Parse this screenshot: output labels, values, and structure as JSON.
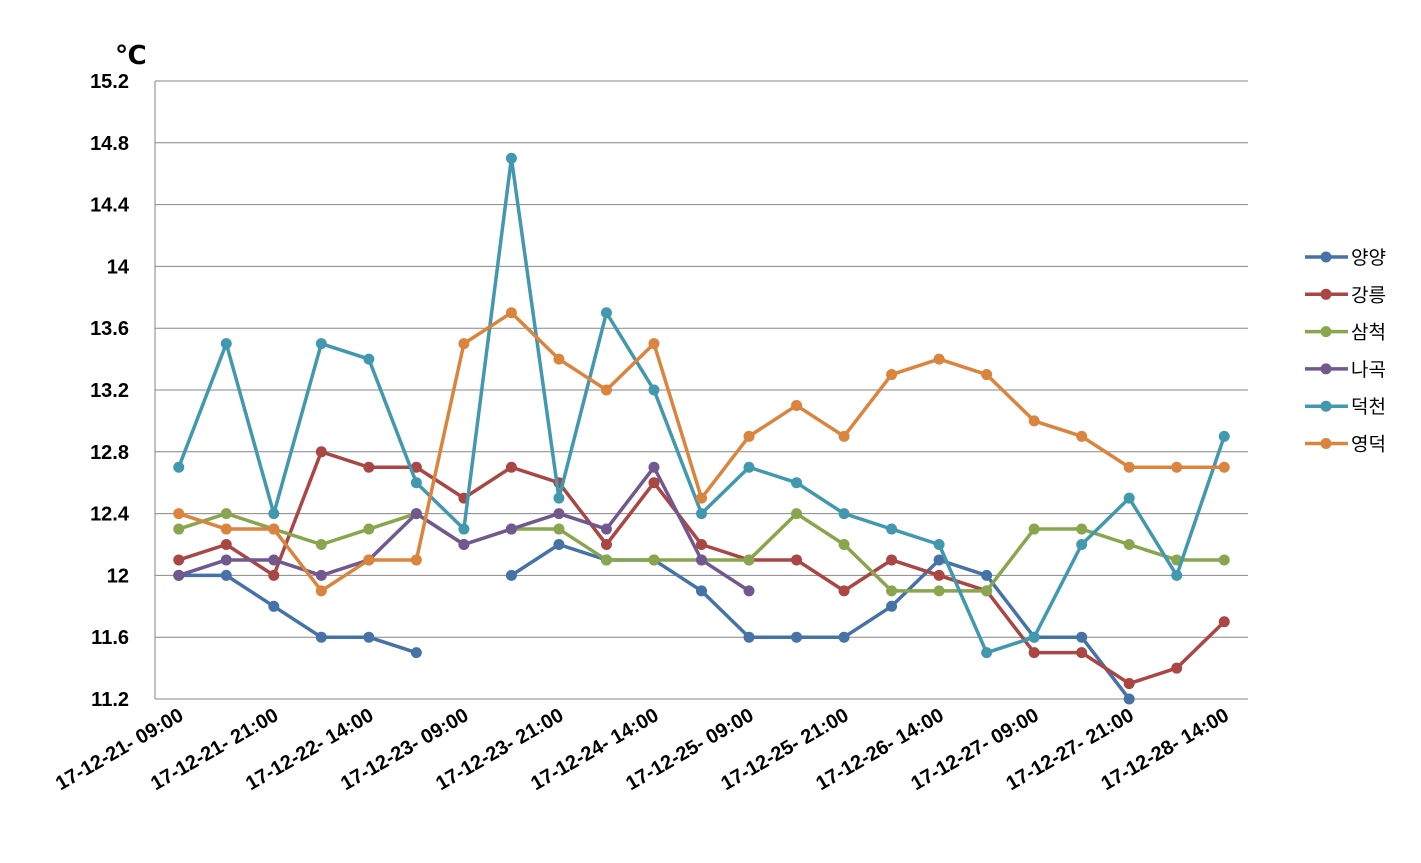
{
  "chart_data": {
    "type": "line",
    "title": "",
    "ylabel": "℃",
    "xlabel": "",
    "ylim": [
      11.2,
      15.2
    ],
    "y_ticks": [
      "11.2",
      "11.6",
      "12",
      "12.4",
      "12.8",
      "13.2",
      "13.6",
      "14",
      "14.4",
      "14.8",
      "15.2"
    ],
    "x_tick_labels": [
      "17-12-21- 09:00",
      "17-12-21- 21:00",
      "17-12-22- 14:00",
      "17-12-23- 09:00",
      "17-12-23- 21:00",
      "17-12-24- 14:00",
      "17-12-25- 09:00",
      "17-12-25- 21:00",
      "17-12-26- 14:00",
      "17-12-27- 09:00",
      "17-12-27- 21:00",
      "17-12-28- 14:00"
    ],
    "grid": true,
    "legend_position": "right",
    "series": [
      {
        "name": "양양",
        "color": "#4572A7",
        "values": [
          12.0,
          12.0,
          11.8,
          11.6,
          11.6,
          11.5,
          null,
          12.0,
          12.2,
          12.1,
          12.1,
          11.9,
          11.6,
          11.6,
          11.6,
          11.8,
          12.1,
          12.0,
          11.6,
          11.6,
          11.2,
          null,
          null
        ]
      },
      {
        "name": "강릉",
        "color": "#AA4643",
        "values": [
          12.1,
          12.2,
          12.0,
          12.8,
          12.7,
          12.7,
          12.5,
          12.7,
          12.6,
          12.2,
          12.6,
          12.2,
          12.1,
          12.1,
          11.9,
          12.1,
          12.0,
          11.9,
          11.5,
          11.5,
          11.3,
          11.4,
          11.7
        ]
      },
      {
        "name": "삼척",
        "color": "#89A54E",
        "values": [
          12.3,
          12.4,
          12.3,
          12.2,
          12.3,
          12.4,
          12.2,
          12.3,
          12.3,
          12.1,
          12.1,
          12.1,
          12.1,
          12.4,
          12.2,
          11.9,
          11.9,
          11.9,
          12.3,
          12.3,
          12.2,
          12.1,
          12.1
        ]
      },
      {
        "name": "나곡",
        "color": "#71588F",
        "values": [
          12.0,
          12.1,
          12.1,
          12.0,
          12.1,
          12.4,
          12.2,
          12.3,
          12.4,
          12.3,
          12.7,
          12.1,
          11.9,
          null,
          null,
          null,
          null,
          null,
          null,
          null,
          null,
          null,
          null
        ]
      },
      {
        "name": "덕천",
        "color": "#4198AF",
        "values": [
          12.7,
          13.5,
          12.4,
          13.5,
          13.4,
          12.6,
          12.3,
          14.7,
          12.5,
          13.7,
          13.2,
          12.4,
          12.7,
          12.6,
          12.4,
          12.3,
          12.2,
          11.5,
          11.6,
          12.2,
          12.5,
          12.0,
          12.9
        ]
      },
      {
        "name": "영덕",
        "color": "#DB843D",
        "values": [
          12.4,
          12.3,
          12.3,
          11.9,
          12.1,
          12.1,
          13.5,
          13.7,
          13.4,
          13.2,
          13.5,
          12.5,
          12.9,
          13.1,
          12.9,
          13.3,
          13.4,
          13.3,
          13.0,
          12.9,
          12.7,
          12.7,
          12.7
        ]
      }
    ]
  }
}
